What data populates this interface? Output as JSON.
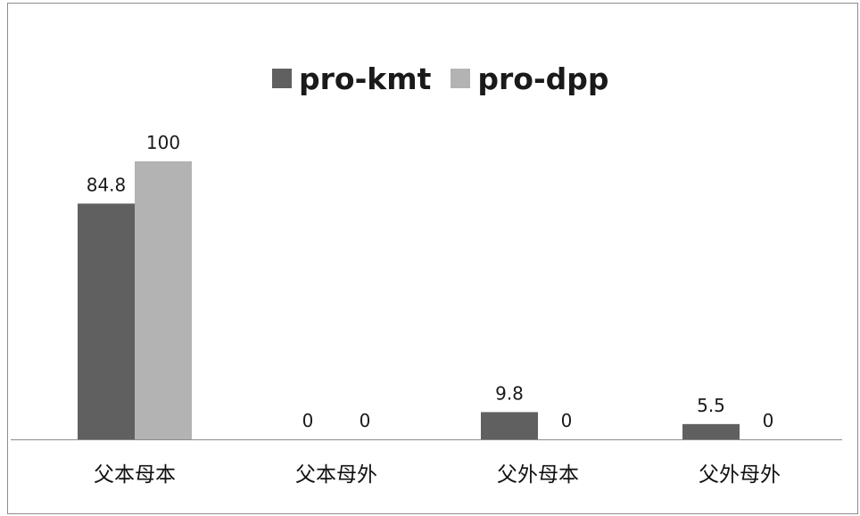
{
  "chart_data": {
    "type": "bar",
    "categories": [
      "父本母本",
      "父本母外",
      "父外母本",
      "父外母外"
    ],
    "series": [
      {
        "name": "pro-kmt",
        "values": [
          84.8,
          0,
          9.8,
          5.5
        ],
        "labels": [
          "84.8",
          "0",
          "9.8",
          "5.5"
        ],
        "color": "#606060"
      },
      {
        "name": "pro-dpp",
        "values": [
          100,
          0,
          0,
          0
        ],
        "labels": [
          "100",
          "0",
          "0",
          "0"
        ],
        "color": "#b3b3b3"
      }
    ],
    "ylim": [
      0,
      100
    ],
    "grid": false,
    "legend_position": "top"
  }
}
